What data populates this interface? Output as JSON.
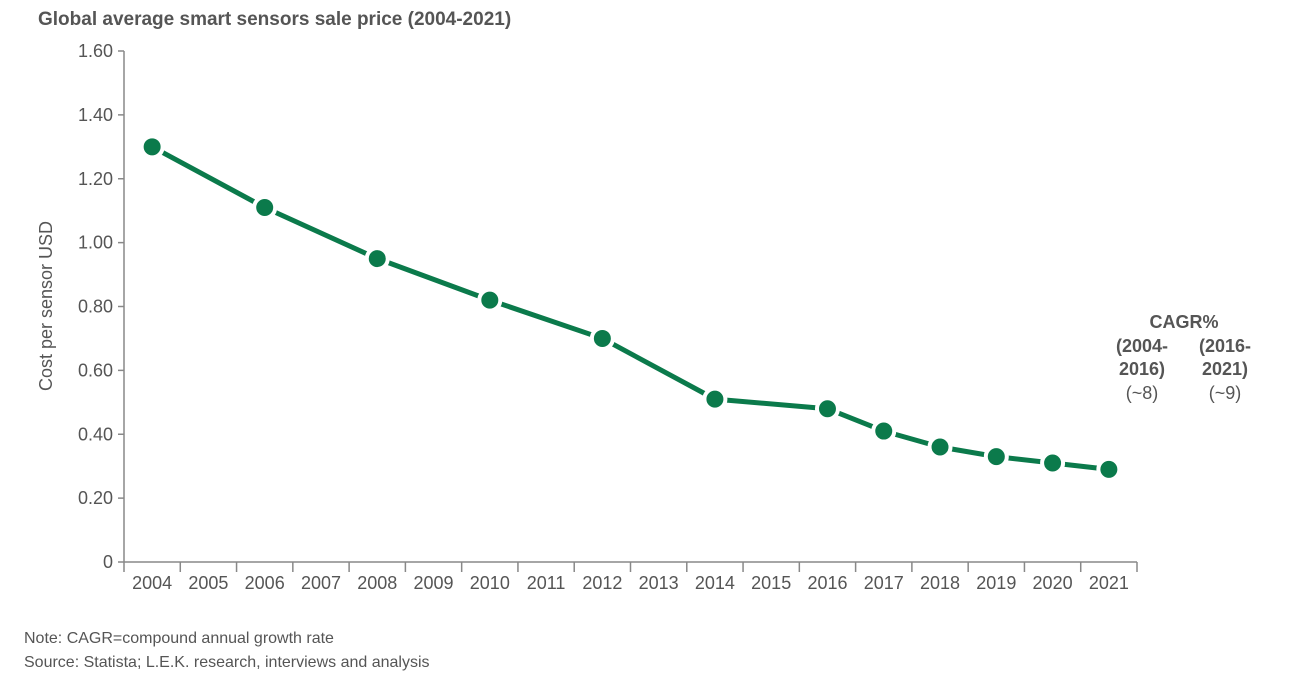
{
  "chart_data": {
    "type": "line",
    "title": "Global average smart sensors sale price (2004-2021)",
    "xlabel": "",
    "ylabel": "Cost per sensor USD",
    "categories": [
      "2004",
      "2005",
      "2006",
      "2007",
      "2008",
      "2009",
      "2010",
      "2011",
      "2012",
      "2013",
      "2014",
      "2015",
      "2016",
      "2017",
      "2018",
      "2019",
      "2020",
      "2021"
    ],
    "yticks": [
      "0",
      "0.20",
      "0.40",
      "0.60",
      "0.80",
      "1.00",
      "1.20",
      "1.40",
      "1.60"
    ],
    "ylim": [
      0,
      1.6
    ],
    "series": [
      {
        "name": "Average sale price",
        "color": "#0b7a4b",
        "points": [
          {
            "x": "2004",
            "y": 1.3
          },
          {
            "x": "2006",
            "y": 1.11
          },
          {
            "x": "2008",
            "y": 0.95
          },
          {
            "x": "2010",
            "y": 0.82
          },
          {
            "x": "2012",
            "y": 0.7
          },
          {
            "x": "2014",
            "y": 0.51
          },
          {
            "x": "2016",
            "y": 0.48
          },
          {
            "x": "2017",
            "y": 0.41
          },
          {
            "x": "2018",
            "y": 0.36
          },
          {
            "x": "2019",
            "y": 0.33
          },
          {
            "x": "2020",
            "y": 0.31
          },
          {
            "x": "2021",
            "y": 0.29
          }
        ]
      }
    ],
    "annotations": {
      "cagr_heading": "CAGR%",
      "period1_a": "(2004-",
      "period1_b": "2016)",
      "period1_value": "(~8)",
      "period2_a": "(2016-",
      "period2_b": "2021)",
      "period2_value": "(~9)"
    },
    "grid": false
  },
  "notes": {
    "note": "Note: CAGR=compound annual growth rate",
    "source": "Source: Statista; L.E.K. research, interviews and analysis"
  }
}
